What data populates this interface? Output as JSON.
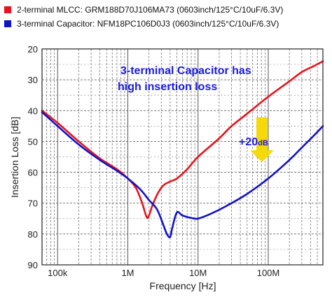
{
  "legend": [
    {
      "label": "2-terminal MLCC: GRM188D70J106MA73 (0603inch/125°C/10uF/6.3V)",
      "color": "#e8131c"
    },
    {
      "label": "3-terminal Capacitor: NFM18PC106D0J3 (0603inch/125°C/10uF/6.3V)",
      "color": "#1212c8"
    }
  ],
  "annotation": {
    "line1": "3-terminal Capacitor has",
    "line2": "high insertion loss",
    "delta_main": "+20",
    "delta_unit": "dB",
    "arrow_color": "#f5d90a"
  },
  "chart_data": {
    "type": "line",
    "xlabel": "Frequency [Hz]",
    "ylabel": "Insertion Loss [dB]",
    "x_scale": "log",
    "xlim": [
      60000,
      600000000
    ],
    "ylim": [
      90,
      20
    ],
    "y_inverted": true,
    "grid": true,
    "legend_position": "top",
    "x_ticks": [
      {
        "value": 100000,
        "label": "100k"
      },
      {
        "value": 1000000,
        "label": "1M"
      },
      {
        "value": 10000000,
        "label": "10M"
      },
      {
        "value": 100000000,
        "label": "100M"
      }
    ],
    "y_ticks": [
      20,
      30,
      40,
      50,
      60,
      70,
      80,
      90
    ],
    "series": [
      {
        "name": "2-terminal MLCC: GRM188D70J106MA73 (0603inch/125°C/10uF/6.3V)",
        "color": "#e8131c",
        "points": [
          [
            60000,
            40
          ],
          [
            100000,
            44
          ],
          [
            200000,
            50
          ],
          [
            400000,
            55.5
          ],
          [
            700000,
            59
          ],
          [
            1000000,
            62
          ],
          [
            1300000,
            65
          ],
          [
            1600000,
            70
          ],
          [
            1850000,
            74.5
          ],
          [
            2000000,
            74
          ],
          [
            2300000,
            70
          ],
          [
            2800000,
            66
          ],
          [
            3300000,
            64
          ],
          [
            4000000,
            63
          ],
          [
            5000000,
            62
          ],
          [
            7000000,
            59
          ],
          [
            10000000,
            55
          ],
          [
            20000000,
            49
          ],
          [
            30000000,
            45
          ],
          [
            50000000,
            41
          ],
          [
            100000000,
            35.5
          ],
          [
            200000000,
            30.5
          ],
          [
            300000000,
            27.5
          ],
          [
            450000000,
            25.5
          ],
          [
            600000000,
            24
          ]
        ]
      },
      {
        "name": "3-terminal Capacitor: NFM18PC106D0J3 (0603inch/125°C/10uF/6.3V)",
        "color": "#1212c8",
        "points": [
          [
            60000,
            40.5
          ],
          [
            100000,
            45
          ],
          [
            200000,
            51
          ],
          [
            400000,
            56
          ],
          [
            700000,
            59.5
          ],
          [
            1000000,
            62
          ],
          [
            1500000,
            65.5
          ],
          [
            2000000,
            69
          ],
          [
            2600000,
            72
          ],
          [
            3200000,
            77
          ],
          [
            3600000,
            80
          ],
          [
            4000000,
            81
          ],
          [
            4300000,
            78
          ],
          [
            5000000,
            73
          ],
          [
            6000000,
            74
          ],
          [
            8000000,
            74.8
          ],
          [
            10000000,
            75
          ],
          [
            15000000,
            73.5
          ],
          [
            25000000,
            71
          ],
          [
            50000000,
            67
          ],
          [
            100000000,
            62
          ],
          [
            200000000,
            56
          ],
          [
            300000000,
            52
          ],
          [
            450000000,
            48
          ],
          [
            600000000,
            45
          ]
        ]
      }
    ]
  }
}
